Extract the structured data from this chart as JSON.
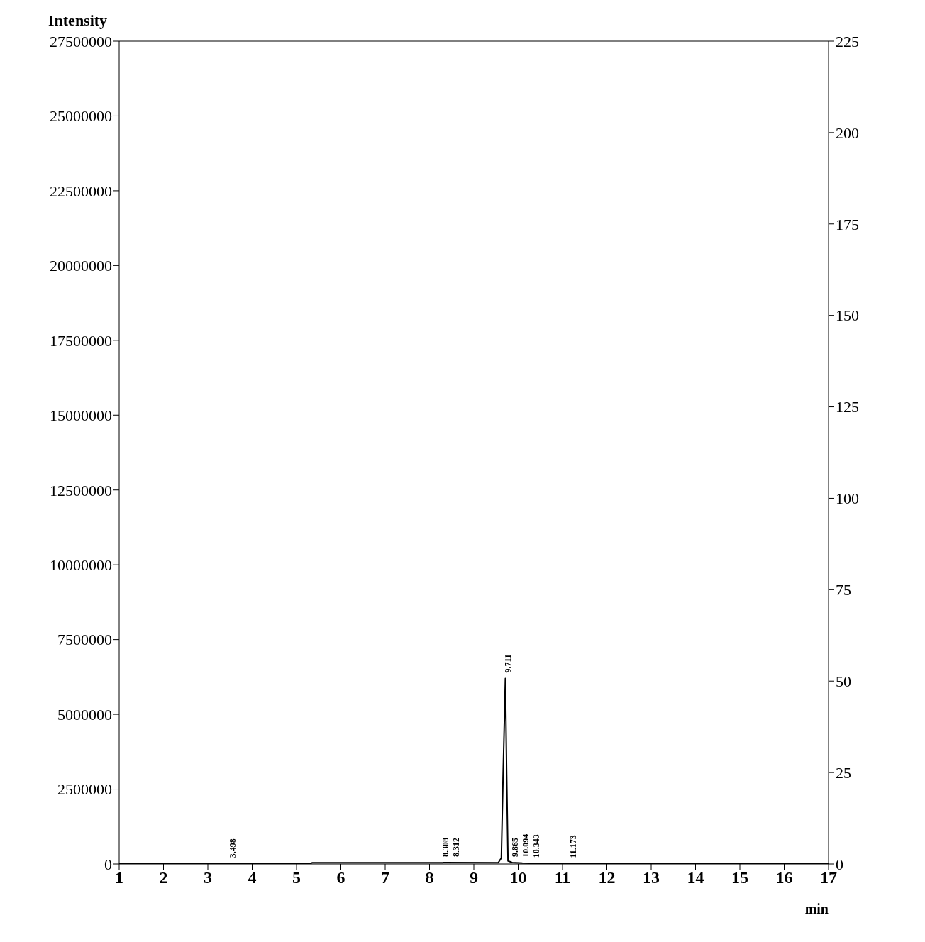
{
  "chart_data": {
    "type": "line",
    "xlabel": "min",
    "ylabel": "Intensity",
    "series": [
      {
        "color": "#000000",
        "x": [
          1,
          3.49,
          3.498,
          3.51,
          5.3,
          5.35,
          8.3,
          8.308,
          8.312,
          9.55,
          9.62,
          9.66,
          9.711,
          9.74,
          9.77,
          9.865,
          10.094,
          10.343,
          11.173,
          12,
          17
        ],
        "values": [
          0,
          0,
          20000,
          0,
          0,
          40000,
          40000,
          50000,
          50000,
          40000,
          200000,
          3000000,
          6200000,
          3000000,
          100000,
          50000,
          30000,
          20000,
          10000,
          0,
          0
        ]
      }
    ],
    "annotations": [
      {
        "text": "3.498",
        "x": 3.498,
        "y": 20000
      },
      {
        "text": "8.308",
        "x": 8.308,
        "y": 50000
      },
      {
        "text": "8.312",
        "x": 8.312,
        "y": 50000
      },
      {
        "text": "9.711",
        "x": 9.711,
        "y": 6200000
      },
      {
        "text": "9.865",
        "x": 9.865,
        "y": 50000
      },
      {
        "text": "10.094",
        "x": 10.094,
        "y": 30000
      },
      {
        "text": "10.343",
        "x": 10.343,
        "y": 20000
      },
      {
        "text": "11.173",
        "x": 11.173,
        "y": 10000
      }
    ],
    "xlim": [
      1,
      17
    ],
    "xticks": [
      1,
      2,
      3,
      4,
      5,
      6,
      7,
      8,
      9,
      10,
      11,
      12,
      13,
      14,
      15,
      16,
      17
    ],
    "ylim": [
      0,
      27500000
    ],
    "yticks": [
      0,
      2500000,
      5000000,
      7500000,
      10000000,
      12500000,
      15000000,
      17500000,
      20000000,
      22500000,
      25000000,
      27500000
    ],
    "y2lim": [
      0,
      225
    ],
    "y2ticks": [
      0,
      25,
      50,
      75,
      100,
      125,
      150,
      175,
      200,
      225
    ],
    "grid": false,
    "legend": false,
    "marker": "none",
    "line_style": "solid"
  }
}
